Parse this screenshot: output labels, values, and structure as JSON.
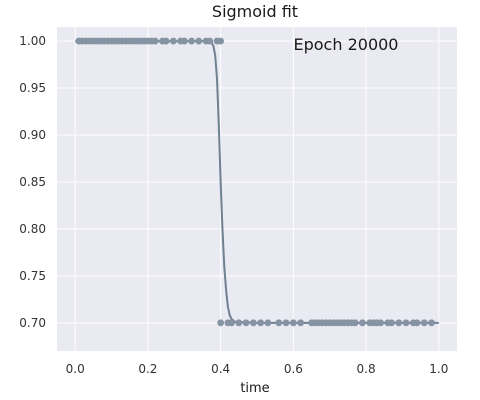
{
  "chart_data": {
    "type": "scatter",
    "title": "Sigmoid fit",
    "xlabel": "time",
    "ylabel": "",
    "annotation": "Epoch 20000",
    "xlim": [
      -0.05,
      1.05
    ],
    "ylim": [
      0.67,
      1.015
    ],
    "xticks": [
      0.0,
      0.2,
      0.4,
      0.6,
      0.8,
      1.0
    ],
    "xtick_labels": [
      "0.0",
      "0.2",
      "0.4",
      "0.6",
      "0.8",
      "1.0"
    ],
    "yticks": [
      0.7,
      0.75,
      0.8,
      0.85,
      0.9,
      0.95,
      1.0
    ],
    "ytick_labels": [
      "0.70",
      "0.75",
      "0.80",
      "0.85",
      "0.90",
      "0.95",
      "1.00"
    ],
    "grid": true,
    "colors": {
      "background": "#eaeaf2",
      "grid": "#ffffff",
      "points": "#8593a3",
      "line": "#6f8090"
    },
    "series": [
      {
        "kind": "points",
        "x": [
          0.01,
          0.02,
          0.03,
          0.04,
          0.05,
          0.06,
          0.07,
          0.08,
          0.09,
          0.1,
          0.11,
          0.12,
          0.13,
          0.14,
          0.15,
          0.16,
          0.17,
          0.18,
          0.19,
          0.2,
          0.21,
          0.22,
          0.24,
          0.25,
          0.27,
          0.29,
          0.3,
          0.32,
          0.34,
          0.36,
          0.37,
          0.39,
          0.4,
          0.4,
          0.42,
          0.43,
          0.45,
          0.47,
          0.49,
          0.51,
          0.53,
          0.56,
          0.58,
          0.6,
          0.62,
          0.65,
          0.66,
          0.67,
          0.68,
          0.69,
          0.7,
          0.71,
          0.72,
          0.73,
          0.74,
          0.75,
          0.76,
          0.77,
          0.79,
          0.81,
          0.82,
          0.83,
          0.84,
          0.86,
          0.87,
          0.89,
          0.91,
          0.93,
          0.94,
          0.96,
          0.98
        ],
        "y": [
          1.0,
          1.0,
          1.0,
          1.0,
          1.0,
          1.0,
          1.0,
          1.0,
          1.0,
          1.0,
          1.0,
          1.0,
          1.0,
          1.0,
          1.0,
          1.0,
          1.0,
          1.0,
          1.0,
          1.0,
          1.0,
          1.0,
          1.0,
          1.0,
          1.0,
          1.0,
          1.0,
          1.0,
          1.0,
          1.0,
          1.0,
          1.0,
          1.0,
          0.7,
          0.7,
          0.7,
          0.7,
          0.7,
          0.7,
          0.7,
          0.7,
          0.7,
          0.7,
          0.7,
          0.7,
          0.7,
          0.7,
          0.7,
          0.7,
          0.7,
          0.7,
          0.7,
          0.7,
          0.7,
          0.7,
          0.7,
          0.7,
          0.7,
          0.7,
          0.7,
          0.7,
          0.7,
          0.7,
          0.7,
          0.7,
          0.7,
          0.7,
          0.7,
          0.7,
          0.7,
          0.7
        ]
      },
      {
        "kind": "line",
        "x": [
          0.0,
          0.3,
          0.36,
          0.375,
          0.38,
          0.385,
          0.39,
          0.395,
          0.4,
          0.405,
          0.41,
          0.415,
          0.42,
          0.425,
          0.43,
          0.44,
          0.5,
          1.0
        ],
        "y": [
          1.0,
          1.0,
          1.0,
          0.998,
          0.995,
          0.985,
          0.96,
          0.91,
          0.85,
          0.8,
          0.76,
          0.735,
          0.717,
          0.708,
          0.704,
          0.701,
          0.7,
          0.7
        ]
      }
    ]
  }
}
